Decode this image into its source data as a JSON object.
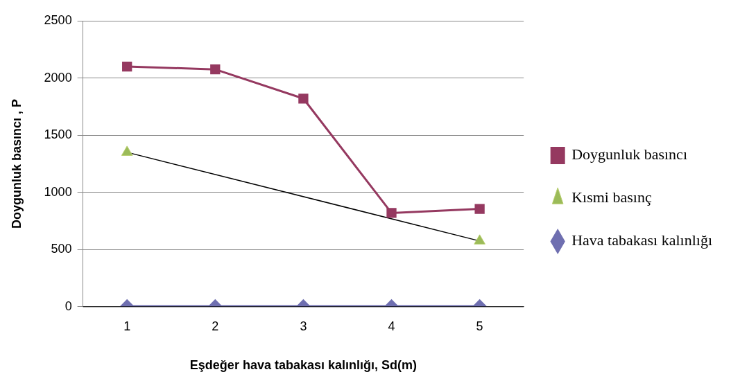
{
  "chart_data": {
    "type": "line",
    "xlabel": "Eşdeğer hava tabakası kalınlığı, Sd(m)",
    "ylabel": "Doygunluk basıncı , P",
    "categories": [
      "1",
      "2",
      "3",
      "4",
      "5"
    ],
    "ylim": [
      0,
      2500
    ],
    "yticks": [
      0,
      500,
      1000,
      1500,
      2000,
      2500
    ],
    "grid": "y",
    "legend": "right",
    "series": [
      {
        "name": "Doygunluk basıncı",
        "type": "line",
        "marker": "square",
        "color": "#953960",
        "values": [
          2100,
          2075,
          1820,
          820,
          855
        ]
      },
      {
        "name": "Kısmi basınç",
        "type": "scatter",
        "marker": "triangle",
        "color": "#9bbb59",
        "values": [
          1350,
          null,
          null,
          null,
          575
        ]
      },
      {
        "type": "line",
        "marker": "none",
        "color": "#000000",
        "values": [
          1350,
          null,
          null,
          null,
          575
        ]
      },
      {
        "name": "Hava tabakası kalınlığı",
        "type": "line",
        "marker": "diamond",
        "color": "#6f6fb0",
        "values": [
          5,
          5,
          5,
          5,
          5
        ]
      }
    ]
  }
}
